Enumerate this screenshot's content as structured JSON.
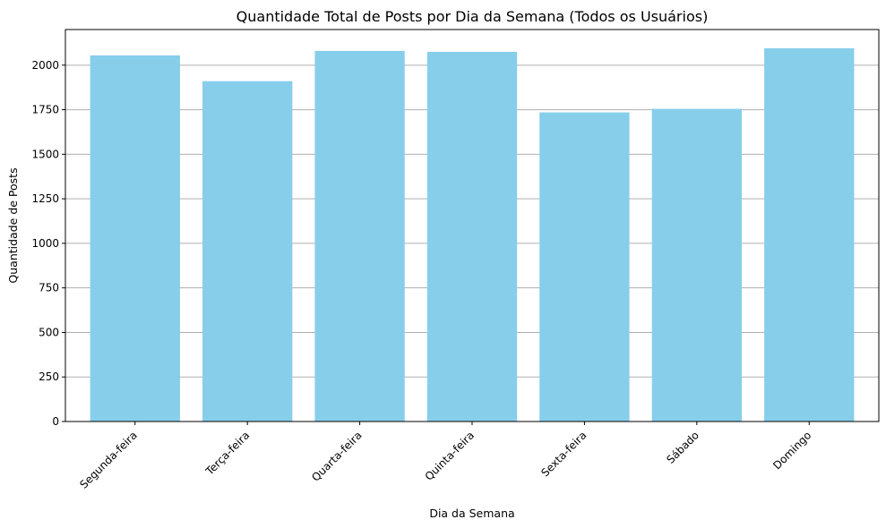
{
  "chart_data": {
    "type": "bar",
    "title": "Quantidade Total de Posts por Dia da Semana (Todos os Usuários)",
    "xlabel": "Dia da Semana",
    "ylabel": "Quantidade de Posts",
    "categories": [
      "Segunda-feira",
      "Terça-feira",
      "Quarta-feira",
      "Quinta-feira",
      "Sexta-feira",
      "Sábado",
      "Domingo"
    ],
    "values": [
      2055,
      1910,
      2080,
      2075,
      1735,
      1755,
      2095
    ],
    "ylim": [
      0,
      2200
    ],
    "yticks": [
      0,
      250,
      500,
      750,
      1000,
      1250,
      1500,
      1750,
      2000
    ],
    "grid": "y",
    "bar_color": "#87ceeb",
    "grid_color": "#b0b0b0"
  }
}
